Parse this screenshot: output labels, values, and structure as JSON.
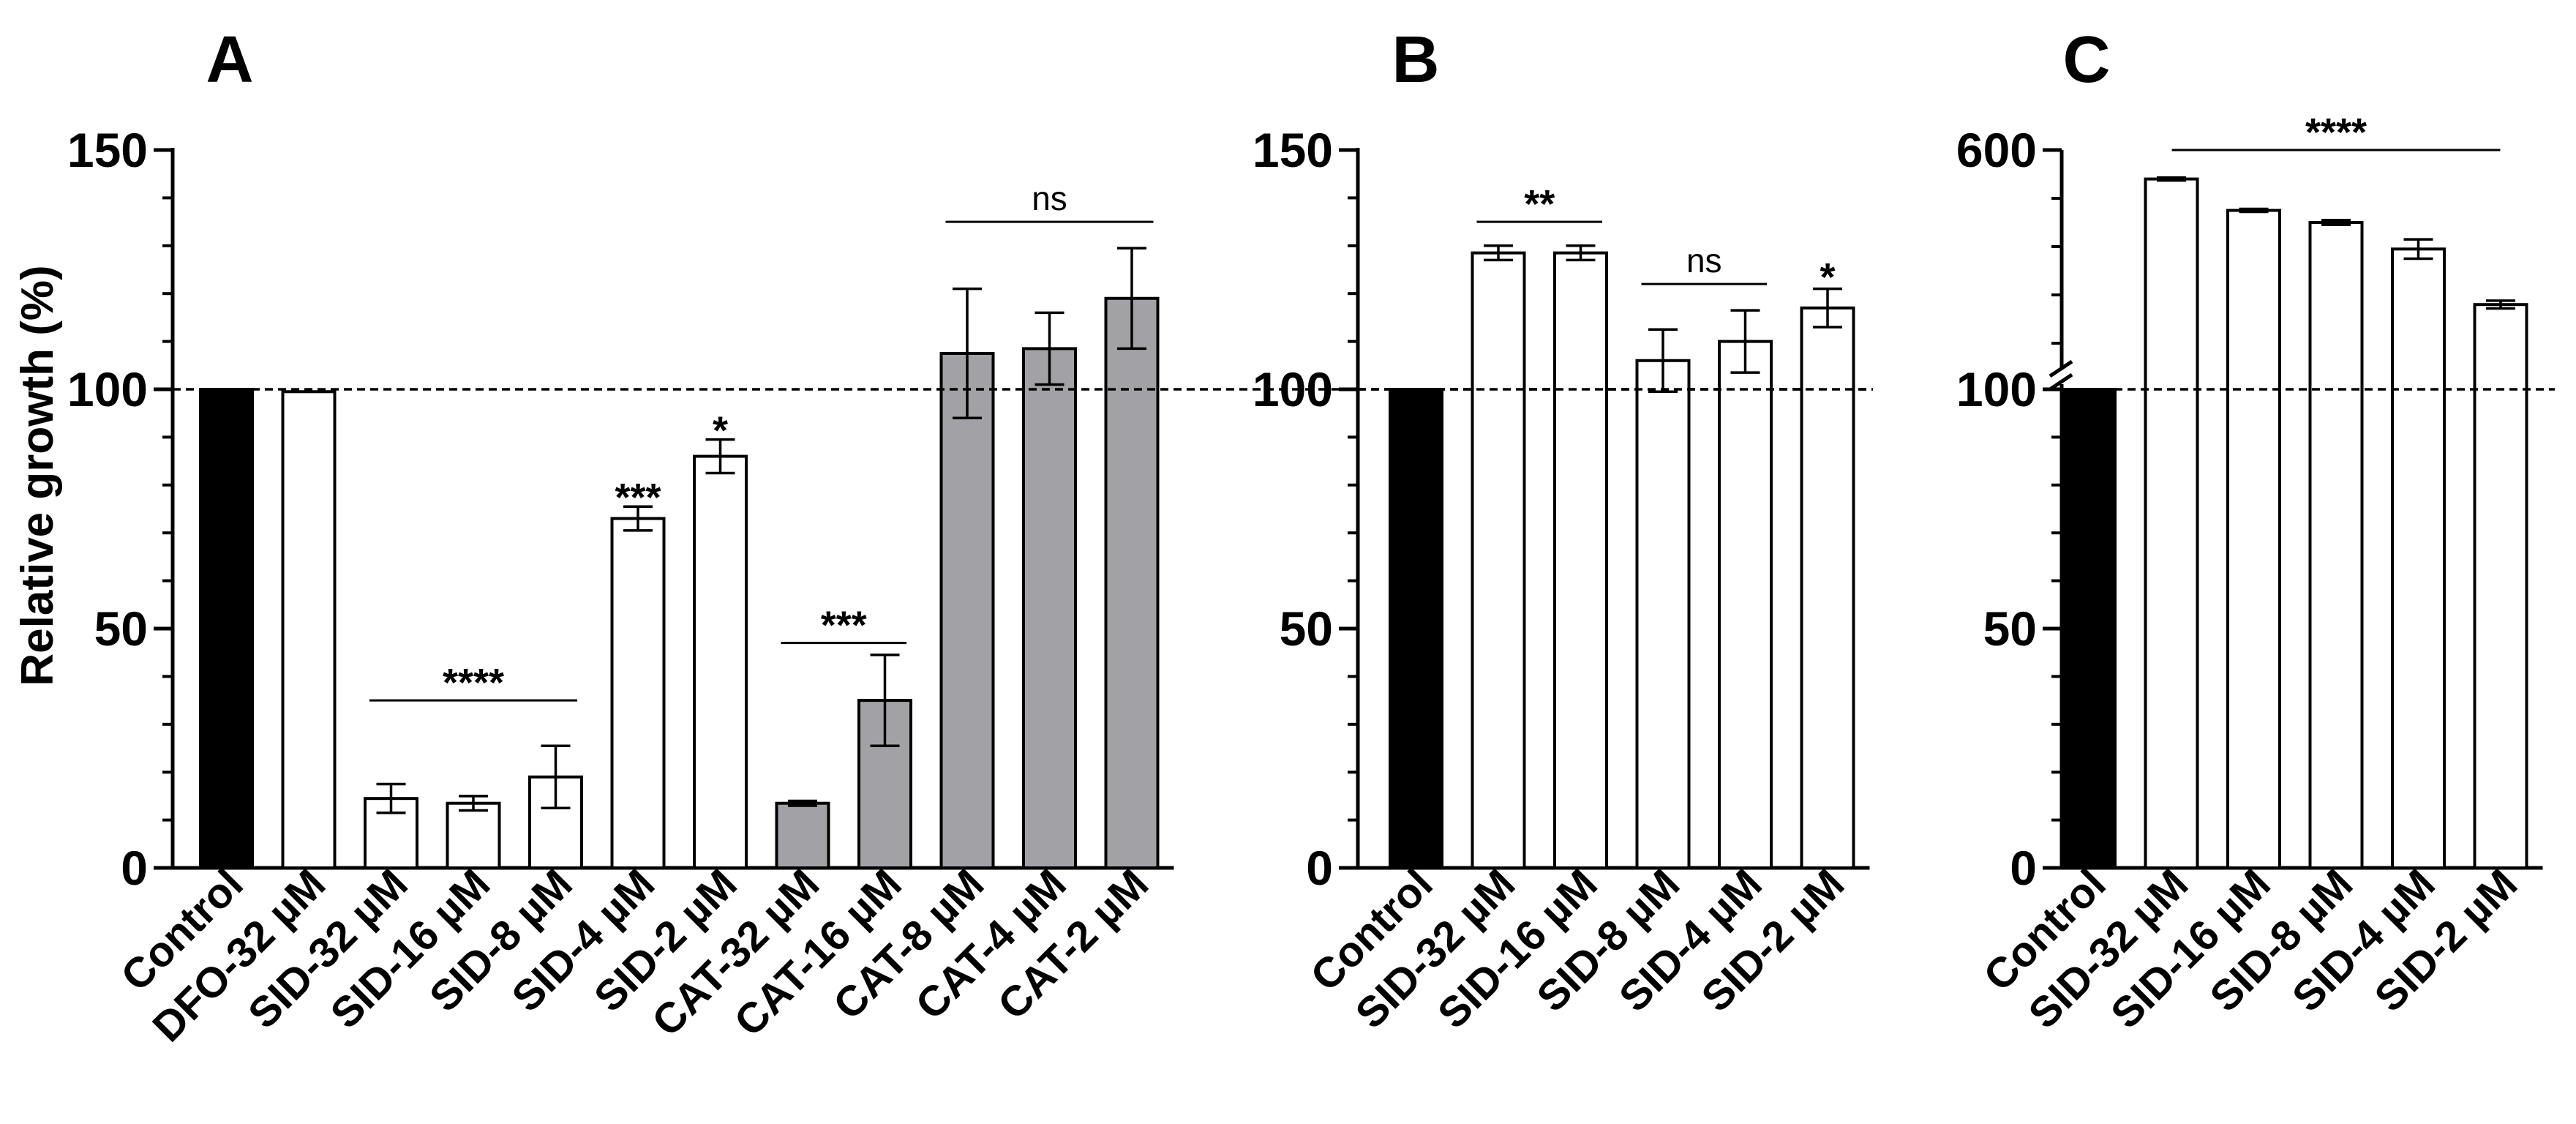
{
  "chart_data": [
    {
      "panel": "A",
      "type": "bar",
      "ylabel": "Relative growth (%)",
      "ylim": [
        0,
        150
      ],
      "yticks": [
        "0",
        "50",
        "100",
        "150"
      ],
      "reference_line": 100,
      "categories": [
        "Control",
        "DFO-32 µM",
        "SID-32 µM",
        "SID-16 µM",
        "SID-8 µM",
        "SID-4 µM",
        "SID-2 µM",
        "CAT-32 µM",
        "CAT-16 µM",
        "CAT-8 µM",
        "CAT-4 µM",
        "CAT-2 µM"
      ],
      "values": [
        100,
        99.5,
        14.5,
        13.5,
        19,
        73,
        86,
        13.5,
        35,
        107.5,
        108.5,
        119
      ],
      "errors": [
        0,
        0,
        3,
        1.5,
        6.5,
        2.5,
        3.5,
        0.5,
        9.5,
        13.5,
        7.5,
        10.5
      ],
      "colors": [
        "#000000",
        "#ffffff",
        "#ffffff",
        "#ffffff",
        "#ffffff",
        "#ffffff",
        "#ffffff",
        "#a2a2a6",
        "#a2a2a6",
        "#a2a2a6",
        "#a2a2a6",
        "#a2a2a6"
      ],
      "annotations": [
        {
          "text": "****",
          "from": 2,
          "to": 4,
          "y": 35
        },
        {
          "text": "***",
          "at": 5,
          "y": 78
        },
        {
          "text": "*",
          "at": 6,
          "y": 92
        },
        {
          "text": "***",
          "from": 7,
          "to": 8,
          "y": 47
        },
        {
          "text": "ns",
          "from": 9,
          "to": 11,
          "y": 135
        }
      ]
    },
    {
      "panel": "B",
      "type": "bar",
      "ylim": [
        0,
        150
      ],
      "yticks": [
        "0",
        "50",
        "100",
        "150"
      ],
      "reference_line": 100,
      "categories": [
        "Control",
        "SID-32 µM",
        "SID-16 µM",
        "SID-8 µM",
        "SID-4 µM",
        "SID-2 µM"
      ],
      "values": [
        100,
        128.5,
        128.5,
        106,
        110,
        117
      ],
      "errors": [
        0,
        1.5,
        1.5,
        6.5,
        6.5,
        4
      ],
      "colors": [
        "#000000",
        "#ffffff",
        "#ffffff",
        "#ffffff",
        "#ffffff",
        "#ffffff"
      ],
      "annotations": [
        {
          "text": "**",
          "from": 1,
          "to": 2,
          "y": 135
        },
        {
          "text": "ns",
          "from": 3,
          "to": 4,
          "y": 122
        },
        {
          "text": "*",
          "at": 5,
          "y": 124
        }
      ]
    },
    {
      "panel": "C",
      "type": "bar",
      "axis_break": true,
      "yticks": [
        "0",
        "50",
        "100",
        "600"
      ],
      "reference_line": 100,
      "categories": [
        "Control",
        "SID-32 µM",
        "SID-16 µM",
        "SID-8 µM",
        "SID-4 µM",
        "SID-2 µM"
      ],
      "values": [
        100,
        540,
        475,
        450,
        395,
        280
      ],
      "errors": [
        0,
        3,
        3,
        5,
        20,
        8
      ],
      "colors": [
        "#000000",
        "#ffffff",
        "#ffffff",
        "#ffffff",
        "#ffffff",
        "#ffffff"
      ],
      "annotations": [
        {
          "text": "****",
          "from": 1,
          "to": 5,
          "y": 600
        }
      ]
    }
  ]
}
